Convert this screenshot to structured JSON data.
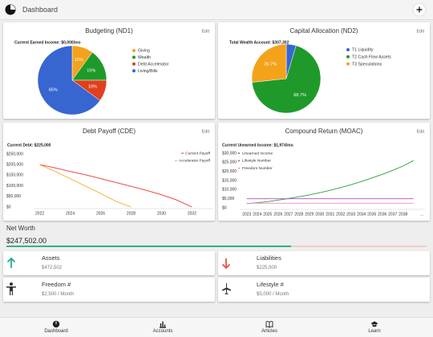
{
  "header": {
    "title": "Dashboard"
  },
  "chart_data": [
    {
      "type": "pie",
      "title": "Budgeting (ND1)",
      "action": "Edit",
      "subtitle": "Current Earned Income: $0,000/mo",
      "categories": [
        "Giving",
        "Wealth",
        "Debt Accelerator",
        "Living/Bills"
      ],
      "values": [
        10,
        15,
        10,
        65
      ],
      "value_labels": [
        "10%",
        "15%",
        "10%",
        "65%"
      ],
      "colors": [
        "#f5a21b",
        "#1f9a2a",
        "#e0401d",
        "#3766d1"
      ]
    },
    {
      "type": "pie",
      "title": "Capital Allocation (ND2)",
      "action": "Edit",
      "subtitle": "Total Wealth Account: $307,302",
      "categories": [
        "T1 Liquidity",
        "T2 Cash Flow Assets",
        "T3 Speculations"
      ],
      "values": [
        4.6,
        68.7,
        26.7
      ],
      "value_labels": [
        null,
        "68.7%",
        "26.7%"
      ],
      "colors": [
        "#3766d1",
        "#1f9a2a",
        "#f5a21b"
      ]
    },
    {
      "type": "line",
      "title": "Debt Payoff (CDE)",
      "action": "Edit",
      "subtitle": "Current Debt: $225,000",
      "x": [
        2022,
        2023,
        2024,
        2025,
        2026,
        2027,
        2028,
        2029,
        2030,
        2031,
        2032
      ],
      "series": [
        {
          "name": "Current Payoff",
          "color": "#e53935",
          "values": [
            200000,
            185000,
            168000,
            152000,
            134000,
            116000,
            98000,
            79000,
            58000,
            33000,
            0
          ]
        },
        {
          "name": "Accelerator Payoff",
          "color": "#f5a623",
          "values": [
            200000,
            168000,
            134000,
            99000,
            64000,
            27000,
            0,
            null,
            null,
            null,
            null
          ]
        }
      ],
      "xlim": [
        2021.6,
        2033.4
      ],
      "ylim": [
        0,
        250000
      ],
      "xticks": [
        2022,
        2024,
        2026,
        2028,
        2030,
        2032
      ],
      "yticks": [
        {
          "value": 0,
          "label": "$0"
        },
        {
          "value": 50000,
          "label": "$50,000"
        },
        {
          "value": 100000,
          "label": "$100,000"
        },
        {
          "value": 150000,
          "label": "$150,000"
        },
        {
          "value": 200000,
          "label": "$200,000"
        },
        {
          "value": 250000,
          "label": "$250,000"
        }
      ],
      "grid": false,
      "legend": "top-right"
    },
    {
      "type": "line",
      "title": "Compound Return (MOAC)",
      "action": "Edit",
      "subtitle": "Current Unearned Income: $1,974/mo",
      "x": [
        2023,
        2024,
        2025,
        2026,
        2027,
        2028,
        2029,
        2030,
        2031,
        2032,
        2033,
        2034,
        2035,
        2036,
        2037,
        2038,
        2039
      ],
      "series": [
        {
          "name": "Unearned Income",
          "color": "#2e9e3a",
          "values": [
            2300,
            2800,
            3400,
            4200,
            5100,
            6100,
            7100,
            8300,
            9600,
            11100,
            12700,
            14500,
            16400,
            18400,
            20600,
            23000,
            26000
          ]
        },
        {
          "name": "Lifestyle Number",
          "color": "#a052c8",
          "values": [
            5000,
            5000,
            5000,
            5000,
            5000,
            5000,
            5000,
            5000,
            5000,
            5000,
            5000,
            5000,
            5000,
            5000,
            5000,
            5000,
            5000
          ]
        },
        {
          "name": "Freedom Number",
          "color": "#f48fb1",
          "values": [
            2500,
            2500,
            2500,
            2500,
            2500,
            2500,
            2500,
            2500,
            2500,
            2500,
            2500,
            2500,
            2500,
            2500,
            2500,
            2500,
            2500
          ]
        }
      ],
      "xlim": [
        2022.4,
        2040.1
      ],
      "ylim": [
        0,
        30000
      ],
      "xticks": [
        2023,
        2024,
        2025,
        2026,
        2027,
        2028,
        2029,
        2030,
        2031,
        2032,
        2033,
        2034,
        2035,
        2036,
        2037,
        2038,
        {
          "value": 2039.8,
          "label": "..."
        }
      ],
      "yticks": [
        {
          "value": 0,
          "label": "$0"
        },
        {
          "value": 5000,
          "label": "$5,000"
        },
        {
          "value": 10000,
          "label": "$10,000"
        },
        {
          "value": 15000,
          "label": "$15,000"
        },
        {
          "value": 20000,
          "label": "$20,000"
        },
        {
          "value": 25000,
          "label": "$25,000"
        },
        {
          "value": 30000,
          "label": "$30,000"
        }
      ],
      "grid": false,
      "legend": "top-left"
    }
  ],
  "net_worth": {
    "title": "Net Worth",
    "value": "$247,502.00",
    "bar_colors": [
      "#35b08a",
      "#f7cdc6"
    ]
  },
  "summary": [
    {
      "label": "Assets",
      "value": 472502,
      "value_label": "$472,502"
    },
    {
      "label": "Liabilities",
      "value": 225000,
      "value_label": "$225,000"
    },
    {
      "label": "Freedom #",
      "value_label": "$2,500 / Month"
    },
    {
      "label": "Lifestyle #",
      "value_label": "$5,000 / Month"
    }
  ],
  "nav": [
    {
      "label": "Dashboard"
    },
    {
      "label": "Accounts"
    },
    {
      "label": "Articles"
    },
    {
      "label": "Learn"
    }
  ]
}
